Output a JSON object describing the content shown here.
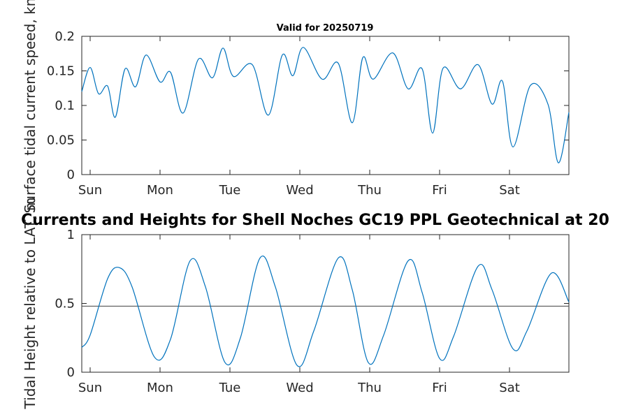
{
  "chart_data": [
    {
      "type": "line",
      "title": "Valid for 20250719",
      "ylabel": "Surface tidal current speed, kn",
      "ylim": [
        0,
        0.2
      ],
      "yticks": [
        "0",
        "0.05",
        "0.1",
        "0.15",
        "0.2"
      ],
      "ytick_values": [
        0,
        0.05,
        0.1,
        0.15,
        0.2
      ],
      "xlim": [
        -0.12,
        6.85
      ],
      "xtick_labels": [
        "Sun",
        "Mon",
        "Tue",
        "Wed",
        "Thu",
        "Fri",
        "Sat"
      ],
      "xtick_values": [
        0,
        1,
        2,
        3,
        4,
        5,
        6
      ],
      "line_color": "#0072BD",
      "series": [
        {
          "x": [
            -0.12,
            0.0,
            0.12,
            0.25,
            0.36,
            0.5,
            0.65,
            0.8,
            1.0,
            1.15,
            1.33,
            1.55,
            1.75,
            1.9,
            2.05,
            2.32,
            2.55,
            2.75,
            2.9,
            3.05,
            3.32,
            3.55,
            3.75,
            3.9,
            4.05,
            4.33,
            4.55,
            4.75,
            4.9,
            5.05,
            5.3,
            5.55,
            5.75,
            5.9,
            6.05,
            6.3,
            6.55,
            6.7,
            6.85
          ],
          "y": [
            0.12,
            0.155,
            0.117,
            0.128,
            0.083,
            0.153,
            0.127,
            0.173,
            0.134,
            0.148,
            0.089,
            0.167,
            0.14,
            0.183,
            0.142,
            0.159,
            0.086,
            0.173,
            0.143,
            0.184,
            0.138,
            0.161,
            0.075,
            0.169,
            0.138,
            0.176,
            0.124,
            0.153,
            0.06,
            0.154,
            0.124,
            0.159,
            0.102,
            0.135,
            0.04,
            0.129,
            0.102,
            0.017,
            0.09
          ]
        }
      ]
    },
    {
      "type": "line",
      "title": "Currents and Heights for Shell Noches   GC19 PPL  Geotechnical at 20",
      "ylabel": "Tidal Height relative to LAT, m",
      "ylim": [
        0,
        1
      ],
      "yticks": [
        "0",
        "0.5",
        "1"
      ],
      "ytick_values": [
        0,
        0.5,
        1
      ],
      "xlim": [
        -0.12,
        6.85
      ],
      "xtick_labels": [
        "Sun",
        "Mon",
        "Tue",
        "Wed",
        "Thu",
        "Fri",
        "Sat"
      ],
      "xtick_values": [
        0,
        1,
        2,
        3,
        4,
        5,
        6
      ],
      "line_color": "#0072BD",
      "reference_line": {
        "y": 0.48,
        "color": "#555555"
      },
      "series": [
        {
          "x": [
            -0.12,
            0.0,
            0.25,
            0.42,
            0.6,
            0.92,
            1.15,
            1.43,
            1.65,
            1.93,
            2.15,
            2.43,
            2.65,
            2.96,
            3.2,
            3.55,
            3.75,
            3.98,
            4.2,
            4.55,
            4.75,
            5.0,
            5.2,
            5.55,
            5.75,
            6.05,
            6.25,
            6.6,
            6.85
          ],
          "y": [
            0.18,
            0.27,
            0.68,
            0.76,
            0.62,
            0.11,
            0.24,
            0.81,
            0.62,
            0.07,
            0.25,
            0.83,
            0.62,
            0.05,
            0.3,
            0.83,
            0.6,
            0.07,
            0.27,
            0.81,
            0.58,
            0.1,
            0.26,
            0.77,
            0.6,
            0.17,
            0.3,
            0.72,
            0.51
          ]
        }
      ]
    }
  ]
}
